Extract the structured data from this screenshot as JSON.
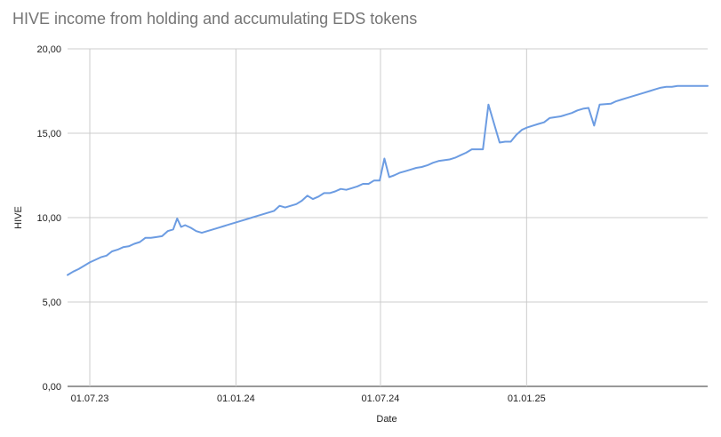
{
  "chart_data": {
    "type": "line",
    "title": "HIVE income from holding and accumulating EDS tokens",
    "xlabel": "Date",
    "ylabel": "HIVE",
    "x_tick_labels": [
      "01.07.23",
      "01.01.24",
      "01.07.24",
      "01.01.25"
    ],
    "x_tick_dates": [
      "2023-07-01",
      "2024-01-01",
      "2024-07-01",
      "2025-01-01"
    ],
    "y_tick_labels": [
      "0,00",
      "5,00",
      "10,00",
      "15,00",
      "20,00"
    ],
    "y_tick_values": [
      0,
      5,
      10,
      15,
      20
    ],
    "xlim": [
      "2023-06-03",
      "2025-08-17"
    ],
    "ylim": [
      0,
      20
    ],
    "grid": true,
    "legend": "none",
    "line_color": "#6c9ce2",
    "series": [
      {
        "x": [
          "2023-06-03",
          "2023-06-10",
          "2023-06-17",
          "2023-06-24",
          "2023-07-01",
          "2023-07-08",
          "2023-07-15",
          "2023-07-22",
          "2023-07-29",
          "2023-08-05",
          "2023-08-12",
          "2023-08-19",
          "2023-08-26",
          "2023-09-02",
          "2023-09-09",
          "2023-09-16",
          "2023-09-23",
          "2023-09-30",
          "2023-10-07",
          "2023-10-14",
          "2023-10-19",
          "2023-10-24",
          "2023-10-29",
          "2023-11-05",
          "2023-11-12",
          "2023-11-19",
          "2023-11-26",
          "2023-12-03",
          "2023-12-10",
          "2023-12-17",
          "2023-12-24",
          "2023-12-31",
          "2024-01-07",
          "2024-01-14",
          "2024-01-21",
          "2024-01-28",
          "2024-02-04",
          "2024-02-11",
          "2024-02-18",
          "2024-02-25",
          "2024-03-03",
          "2024-03-10",
          "2024-03-17",
          "2024-03-24",
          "2024-03-31",
          "2024-04-07",
          "2024-04-14",
          "2024-04-21",
          "2024-04-28",
          "2024-05-05",
          "2024-05-12",
          "2024-05-19",
          "2024-05-26",
          "2024-06-02",
          "2024-06-09",
          "2024-06-16",
          "2024-06-23",
          "2024-06-30",
          "2024-07-06",
          "2024-07-12",
          "2024-07-18",
          "2024-07-25",
          "2024-08-01",
          "2024-08-08",
          "2024-08-15",
          "2024-08-22",
          "2024-08-29",
          "2024-09-05",
          "2024-09-12",
          "2024-09-19",
          "2024-09-26",
          "2024-10-03",
          "2024-10-10",
          "2024-10-17",
          "2024-10-24",
          "2024-10-31",
          "2024-11-07",
          "2024-11-14",
          "2024-11-28",
          "2024-12-05",
          "2024-12-12",
          "2024-12-19",
          "2024-12-26",
          "2025-01-02",
          "2025-01-09",
          "2025-01-16",
          "2025-01-23",
          "2025-01-30",
          "2025-02-13",
          "2025-02-20",
          "2025-02-27",
          "2025-03-06",
          "2025-03-13",
          "2025-03-20",
          "2025-03-27",
          "2025-04-03",
          "2025-04-17",
          "2025-04-24",
          "2025-05-01",
          "2025-05-08",
          "2025-05-15",
          "2025-05-22",
          "2025-05-29",
          "2025-06-05",
          "2025-06-12",
          "2025-06-19",
          "2025-06-26",
          "2025-07-03",
          "2025-07-10",
          "2025-07-17",
          "2025-07-24",
          "2025-07-31",
          "2025-08-07",
          "2025-08-17"
        ],
        "y": [
          6.6,
          6.8,
          6.95,
          7.15,
          7.35,
          7.5,
          7.65,
          7.75,
          8.0,
          8.1,
          8.25,
          8.3,
          8.45,
          8.55,
          8.8,
          8.8,
          8.85,
          8.9,
          9.2,
          9.3,
          9.95,
          9.45,
          9.55,
          9.4,
          9.2,
          9.1,
          9.2,
          9.3,
          9.4,
          9.5,
          9.6,
          9.7,
          9.8,
          9.9,
          10.0,
          10.1,
          10.2,
          10.3,
          10.4,
          10.7,
          10.6,
          10.7,
          10.8,
          11.0,
          11.3,
          11.1,
          11.25,
          11.45,
          11.45,
          11.55,
          11.7,
          11.65,
          11.75,
          11.85,
          12.0,
          12.0,
          12.2,
          12.2,
          13.5,
          12.4,
          12.5,
          12.65,
          12.75,
          12.85,
          12.95,
          13.0,
          13.1,
          13.25,
          13.35,
          13.4,
          13.45,
          13.55,
          13.7,
          13.85,
          14.05,
          14.05,
          14.05,
          16.7,
          14.45,
          14.5,
          14.5,
          14.9,
          15.2,
          15.35,
          15.45,
          15.55,
          15.65,
          15.9,
          16.0,
          16.1,
          16.2,
          16.35,
          16.45,
          16.5,
          15.45,
          16.7,
          16.75,
          16.9,
          17.0,
          17.1,
          17.2,
          17.3,
          17.4,
          17.5,
          17.6,
          17.7,
          17.75,
          17.75,
          17.8,
          17.8,
          17.8,
          17.8,
          17.8,
          17.8
        ]
      }
    ]
  }
}
